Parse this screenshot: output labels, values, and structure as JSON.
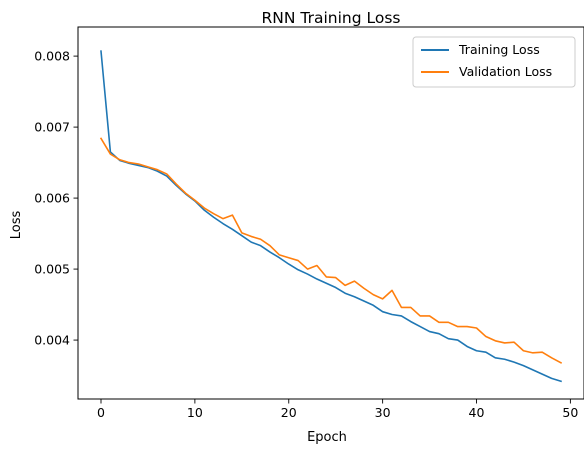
{
  "chart_data": {
    "type": "line",
    "title": "RNN Training Loss",
    "xlabel": "Epoch",
    "ylabel": "Loss",
    "xlim": [
      -2.45,
      51.45
    ],
    "ylim": [
      0.00317,
      0.00841
    ],
    "xticks": [
      0,
      10,
      20,
      30,
      40,
      50
    ],
    "xtick_labels": [
      "0",
      "10",
      "20",
      "30",
      "40",
      "50"
    ],
    "yticks": [
      0.004,
      0.005,
      0.006,
      0.007,
      0.008
    ],
    "ytick_labels": [
      "0.004",
      "0.005",
      "0.006",
      "0.007",
      "0.008"
    ],
    "grid": false,
    "legend_position": "top-right",
    "x": [
      0,
      1,
      2,
      3,
      4,
      5,
      6,
      7,
      8,
      9,
      10,
      11,
      12,
      13,
      14,
      15,
      16,
      17,
      18,
      19,
      20,
      21,
      22,
      23,
      24,
      25,
      26,
      27,
      28,
      29,
      30,
      31,
      32,
      33,
      34,
      35,
      36,
      37,
      38,
      39,
      40,
      41,
      42,
      43,
      44,
      45,
      46,
      47,
      48,
      49
    ],
    "series": [
      {
        "name": "Training Loss",
        "color": "#1f77b4",
        "values": [
          0.00807,
          0.00665,
          0.00653,
          0.00649,
          0.00646,
          0.00643,
          0.00638,
          0.00631,
          0.00618,
          0.00606,
          0.00596,
          0.00583,
          0.00573,
          0.00564,
          0.00556,
          0.00547,
          0.00538,
          0.00533,
          0.00524,
          0.00516,
          0.00507,
          0.00499,
          0.00493,
          0.00486,
          0.0048,
          0.00474,
          0.00466,
          0.00461,
          0.00455,
          0.00449,
          0.0044,
          0.00436,
          0.00434,
          0.00426,
          0.00419,
          0.00412,
          0.00409,
          0.00402,
          0.004,
          0.00391,
          0.00385,
          0.00383,
          0.00375,
          0.00373,
          0.00369,
          0.00364,
          0.00358,
          0.00352,
          0.00346,
          0.00342
        ]
      },
      {
        "name": "Validation Loss",
        "color": "#ff7f0e",
        "values": [
          0.00684,
          0.00662,
          0.00654,
          0.0065,
          0.00648,
          0.00644,
          0.0064,
          0.00634,
          0.0062,
          0.00607,
          0.00597,
          0.00586,
          0.00578,
          0.00571,
          0.00576,
          0.00551,
          0.00546,
          0.00542,
          0.00533,
          0.0052,
          0.00516,
          0.00512,
          0.005,
          0.00505,
          0.00489,
          0.00488,
          0.00477,
          0.00483,
          0.00473,
          0.00464,
          0.00458,
          0.0047,
          0.00446,
          0.00446,
          0.00434,
          0.00434,
          0.00425,
          0.00425,
          0.00419,
          0.00419,
          0.00417,
          0.00405,
          0.00399,
          0.00396,
          0.00397,
          0.00385,
          0.00382,
          0.00383,
          0.00375,
          0.00368
        ]
      }
    ]
  }
}
